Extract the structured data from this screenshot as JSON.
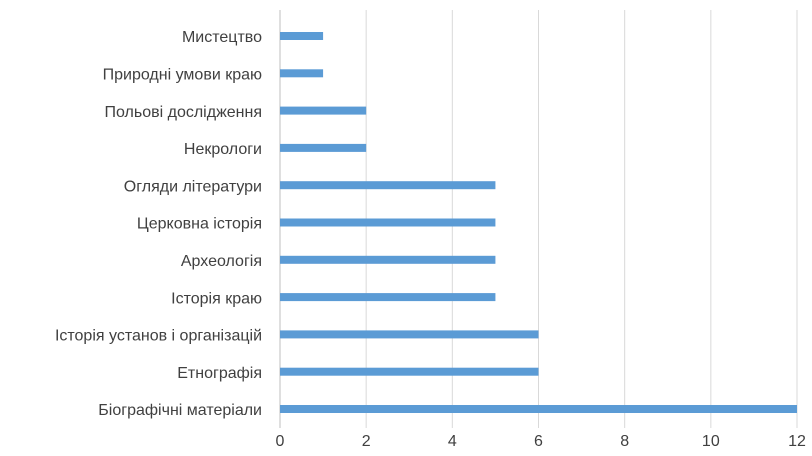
{
  "chart_data": {
    "type": "bar",
    "orientation": "horizontal",
    "categories": [
      "Мистецтво",
      "Природні умови краю",
      "Польові дослідження",
      "Некрологи",
      "Огляди літератури",
      "Церковна історія",
      "Археологія",
      "Історія краю",
      "Історія установ і організацій",
      "Етнографія",
      "Біографічні матеріали"
    ],
    "values": [
      1,
      1,
      2,
      2,
      5,
      5,
      5,
      5,
      6,
      6,
      12
    ],
    "xlim": [
      0,
      12
    ],
    "xticks": [
      0,
      2,
      4,
      6,
      8,
      10,
      12
    ],
    "grid": true,
    "bar_color": "#5b9bd5",
    "title": "",
    "xlabel": "",
    "ylabel": ""
  }
}
